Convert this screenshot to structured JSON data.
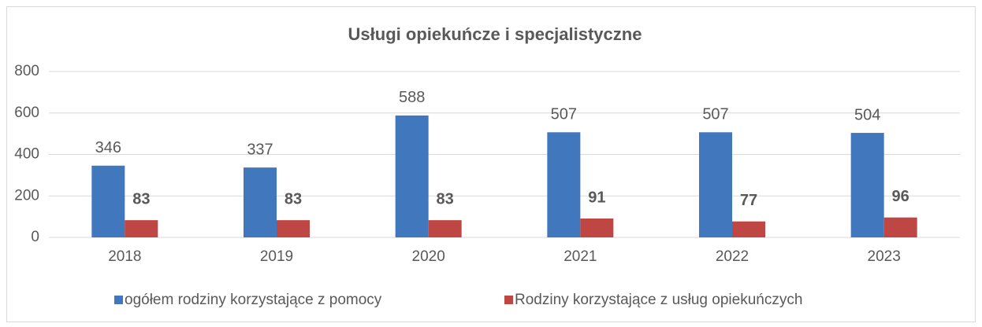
{
  "chart_data": {
    "type": "bar",
    "title": "Usługi opiekuńcze i specjalistyczne",
    "categories": [
      "2018",
      "2019",
      "2020",
      "2021",
      "2022",
      "2023"
    ],
    "series": [
      {
        "name": "ogółem rodziny korzystające z pomocy",
        "color": "#4077bd",
        "values": [
          346,
          337,
          588,
          507,
          507,
          504
        ]
      },
      {
        "name": "Rodziny korzystające z usług opiekuńczych",
        "color": "#be4643",
        "values": [
          83,
          83,
          83,
          91,
          77,
          96
        ]
      }
    ],
    "ylim": [
      0,
      800
    ],
    "yticks": [
      0,
      200,
      400,
      600,
      800
    ],
    "grid": true,
    "legend": "bottom"
  }
}
